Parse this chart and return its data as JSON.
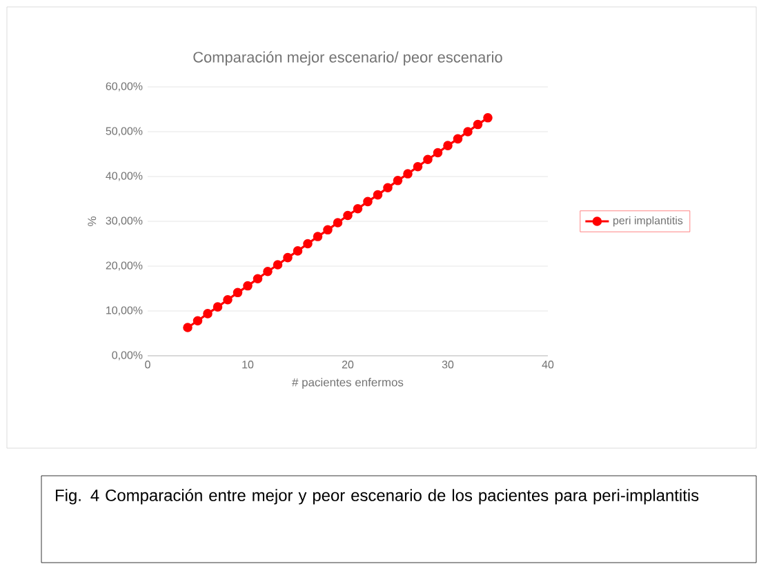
{
  "chart_data": {
    "type": "line",
    "title": "Comparación mejor escenario/ peor escenario",
    "xlabel": "# pacientes enfermos",
    "ylabel": "%",
    "annotations": [
      "Fig. 4 Comparación entre mejor y peor escenario de los pacientes para peri-implantitis"
    ],
    "x": [
      4,
      5,
      6,
      7,
      8,
      9,
      10,
      11,
      12,
      13,
      14,
      15,
      16,
      17,
      18,
      19,
      20,
      21,
      22,
      23,
      24,
      25,
      26,
      27,
      28,
      29,
      30,
      31,
      32,
      33,
      34
    ],
    "series": [
      {
        "name": "peri implantitis",
        "color": "#ff0000",
        "values": [
          6.3,
          7.8,
          9.4,
          10.9,
          12.5,
          14.1,
          15.6,
          17.2,
          18.8,
          20.3,
          21.9,
          23.4,
          25.0,
          26.6,
          28.1,
          29.7,
          31.3,
          32.8,
          34.4,
          35.9,
          37.5,
          39.1,
          40.6,
          42.2,
          43.8,
          45.3,
          46.9,
          48.4,
          50.0,
          51.6,
          53.1
        ]
      }
    ],
    "xlim": [
      0,
      40
    ],
    "xticks": [
      0,
      10,
      20,
      30,
      40
    ],
    "ylim": [
      0,
      60
    ],
    "yticks": [
      {
        "value": 0,
        "label": "0,00%"
      },
      {
        "value": 10,
        "label": "10,00%"
      },
      {
        "value": 20,
        "label": "20,00%"
      },
      {
        "value": 30,
        "label": "30,00%"
      },
      {
        "value": 40,
        "label": "40,00%"
      },
      {
        "value": 50,
        "label": "50,00%"
      },
      {
        "value": 60,
        "label": "60,00%"
      }
    ],
    "grid": "y",
    "legend": "right",
    "marker": "circle"
  }
}
